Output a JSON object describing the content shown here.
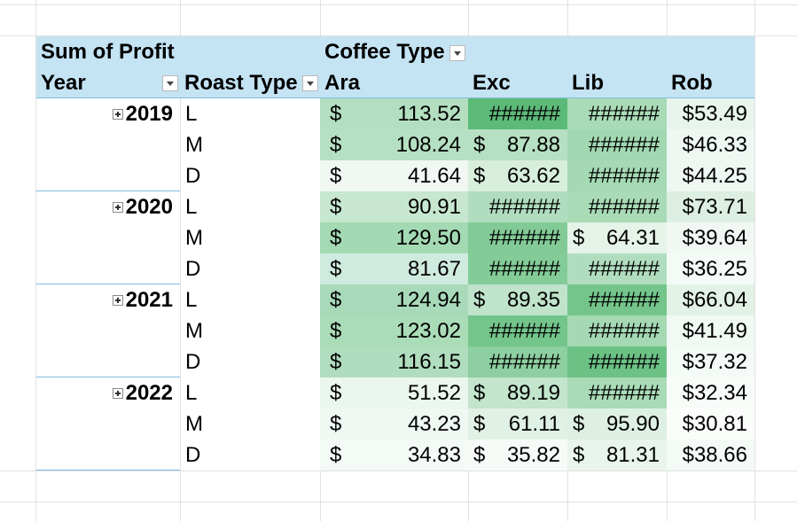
{
  "pivot": {
    "values_field": "Sum of Profit",
    "column_field": "Coffee Type",
    "row_field_1": "Year",
    "row_field_2": "Roast Type",
    "columns": [
      "Ara",
      "Exc",
      "Lib",
      "Rob"
    ],
    "groups": [
      {
        "year": "2019",
        "rows": [
          {
            "roast": "L",
            "ara_cur": "$",
            "ara": "113.52",
            "exc_cur": "",
            "exc": "######",
            "lib_cur": "",
            "lib": "######",
            "rob": "$53.49"
          },
          {
            "roast": "M",
            "ara_cur": "$",
            "ara": "108.24",
            "exc_cur": "$",
            "exc": "87.88",
            "lib_cur": "",
            "lib": "######",
            "rob": "$46.33"
          },
          {
            "roast": "D",
            "ara_cur": "$",
            "ara": "41.64",
            "exc_cur": "$",
            "exc": "63.62",
            "lib_cur": "",
            "lib": "######",
            "rob": "$44.25"
          }
        ]
      },
      {
        "year": "2020",
        "rows": [
          {
            "roast": "L",
            "ara_cur": "$",
            "ara": "90.91",
            "exc_cur": "",
            "exc": "######",
            "lib_cur": "",
            "lib": "######",
            "rob": "$73.71"
          },
          {
            "roast": "M",
            "ara_cur": "$",
            "ara": "129.50",
            "exc_cur": "",
            "exc": "######",
            "lib_cur": "$",
            "lib": "64.31",
            "rob": "$39.64"
          },
          {
            "roast": "D",
            "ara_cur": "$",
            "ara": "81.67",
            "exc_cur": "",
            "exc": "######",
            "lib_cur": "",
            "lib": "######",
            "rob": "$36.25"
          }
        ]
      },
      {
        "year": "2021",
        "rows": [
          {
            "roast": "L",
            "ara_cur": "$",
            "ara": "124.94",
            "exc_cur": "$",
            "exc": "89.35",
            "lib_cur": "",
            "lib": "######",
            "rob": "$66.04"
          },
          {
            "roast": "M",
            "ara_cur": "$",
            "ara": "123.02",
            "exc_cur": "",
            "exc": "######",
            "lib_cur": "",
            "lib": "######",
            "rob": "$41.49"
          },
          {
            "roast": "D",
            "ara_cur": "$",
            "ara": "116.15",
            "exc_cur": "",
            "exc": "######",
            "lib_cur": "",
            "lib": "######",
            "rob": "$37.32"
          }
        ]
      },
      {
        "year": "2022",
        "rows": [
          {
            "roast": "L",
            "ara_cur": "$",
            "ara": "51.52",
            "exc_cur": "$",
            "exc": "89.19",
            "lib_cur": "",
            "lib": "######",
            "rob": "$32.34"
          },
          {
            "roast": "M",
            "ara_cur": "$",
            "ara": "43.23",
            "exc_cur": "$",
            "exc": "61.11",
            "lib_cur": "$",
            "lib": "95.90",
            "rob": "$30.81"
          },
          {
            "roast": "D",
            "ara_cur": "$",
            "ara": "34.83",
            "exc_cur": "$",
            "exc": "35.82",
            "lib_cur": "$",
            "lib": "81.31",
            "rob": "$38.66"
          }
        ]
      }
    ]
  },
  "colors": {
    "header_fill": "#c4e3f3",
    "heat": [
      [
        "#b3dfc0",
        "#5cba78",
        "#a9dbb7",
        "#e9f5ec"
      ],
      [
        "#b6e0c3",
        "#b6e0c3",
        "#a2d8b1",
        "#eef7f1"
      ],
      [
        "#f1f8f3",
        "#d7eedd",
        "#a4d9b3",
        "#eef7f1"
      ],
      [
        "#c7e7d0",
        "#b0ddbe",
        "#a9dbb7",
        "#dcefe2"
      ],
      [
        "#a3d9b3",
        "#82cb97",
        "#e5f3e8",
        "#f1f8f3"
      ],
      [
        "#cfeade",
        "#83cc98",
        "#b1ddbf",
        "#f4faf6"
      ],
      [
        "#a8daba",
        "#bfe3cb",
        "#74c58b",
        "#e2f2e6"
      ],
      [
        "#abdcb8",
        "#73c58b",
        "#a5d9b4",
        "#f1f9f3"
      ],
      [
        "#b1ddbf",
        "#8dcfa0",
        "#6cc185",
        "#f4faf6"
      ],
      [
        "#ebf6ee",
        "#c2e5cc",
        "#a9dbb7",
        "#f8fcf9"
      ],
      [
        "#eff8f2",
        "#e0f1e5",
        "#ddf0e3",
        "#fbfdfb"
      ],
      [
        "#f4faf6",
        "#f7fbf8",
        "#e9f5ec",
        "#f4faf6"
      ]
    ]
  }
}
